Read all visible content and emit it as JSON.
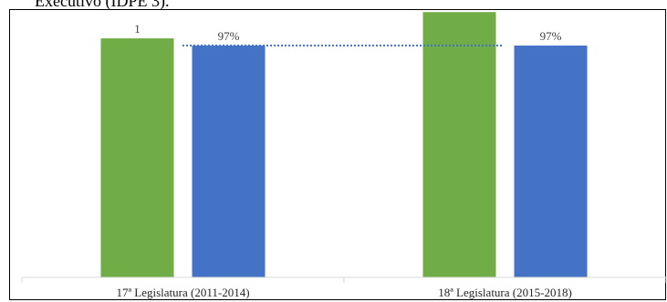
{
  "heading": "Executivo (IDPE 3).",
  "chart_data": {
    "type": "bar",
    "categories": [
      "17ª Legislatura (2011-2014)",
      "18ª Legislatura (2015-2018)"
    ],
    "series": [
      {
        "color": "#70AD47",
        "values": [
          1.0,
          1.11
        ],
        "labels": [
          "1",
          ""
        ]
      },
      {
        "color": "#4472C4",
        "values": [
          0.97,
          0.97
        ],
        "labels": [
          "97%",
          "97%"
        ]
      }
    ],
    "reference_line": {
      "value": 0.97,
      "color": "#4472C4",
      "style": "dotted"
    },
    "ylim": [
      0,
      1.13
    ],
    "grid": false,
    "legend": "none"
  }
}
